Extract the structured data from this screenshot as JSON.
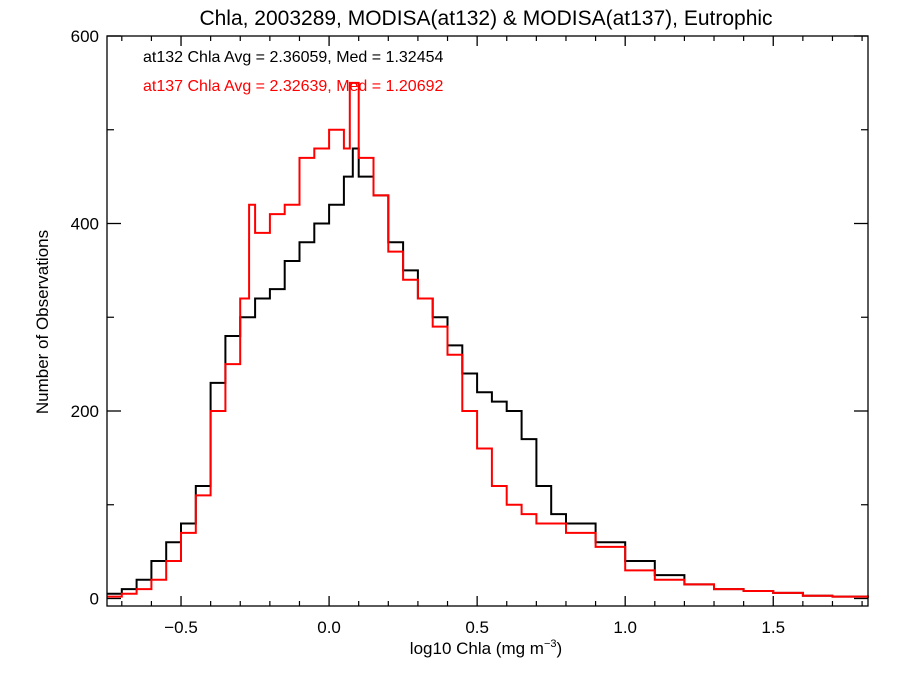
{
  "chart_data": {
    "type": "line",
    "title": "Chla, 2003289, MODISA(at132) & MODISA(at137), Eutrophic",
    "xlabel": "log10 Chla (mg m",
    "xlabel_sup": "−3",
    "xlabel_close": ")",
    "ylabel": "Number of Observations",
    "xlim": [
      -0.75,
      1.82
    ],
    "ylim": [
      -8,
      600
    ],
    "x_ticks": [
      -0.5,
      0.0,
      0.5,
      1.0,
      1.5
    ],
    "x_tick_labels": [
      "−0.5",
      "0.0",
      "0.5",
      "1.0",
      "1.5"
    ],
    "y_ticks": [
      0,
      200,
      400,
      600
    ],
    "y_tick_labels": [
      "0",
      "200",
      "400",
      "600"
    ],
    "grid": false,
    "step": true,
    "annotations": [
      {
        "text": "at132 Chla Avg = 2.36059, Med = 1.32454",
        "color": "#000000"
      },
      {
        "text": "at137 Chla Avg = 2.32639, Med = 1.20692",
        "color": "#ff0000"
      }
    ],
    "series": [
      {
        "color": "#000000",
        "x": [
          -0.75,
          -0.7,
          -0.65,
          -0.6,
          -0.55,
          -0.5,
          -0.45,
          -0.4,
          -0.35,
          -0.3,
          -0.25,
          -0.2,
          -0.15,
          -0.1,
          -0.05,
          0.0,
          0.05,
          0.08,
          0.1,
          0.15,
          0.2,
          0.25,
          0.3,
          0.35,
          0.4,
          0.45,
          0.5,
          0.55,
          0.6,
          0.65,
          0.7,
          0.75,
          0.8,
          0.9,
          1.0,
          1.1,
          1.2,
          1.3,
          1.4,
          1.5,
          1.6,
          1.7,
          1.82
        ],
        "y": [
          5,
          10,
          20,
          40,
          60,
          80,
          120,
          230,
          280,
          300,
          320,
          330,
          360,
          380,
          400,
          420,
          450,
          480,
          450,
          430,
          380,
          350,
          320,
          300,
          270,
          240,
          220,
          210,
          200,
          170,
          120,
          90,
          80,
          60,
          40,
          25,
          15,
          10,
          8,
          6,
          3,
          2,
          1
        ]
      },
      {
        "color": "#ff0000",
        "x": [
          -0.75,
          -0.7,
          -0.65,
          -0.6,
          -0.55,
          -0.5,
          -0.45,
          -0.4,
          -0.35,
          -0.3,
          -0.27,
          -0.25,
          -0.2,
          -0.15,
          -0.1,
          -0.05,
          0.0,
          0.05,
          0.07,
          0.1,
          0.15,
          0.2,
          0.25,
          0.3,
          0.35,
          0.4,
          0.45,
          0.5,
          0.55,
          0.6,
          0.65,
          0.7,
          0.8,
          0.9,
          1.0,
          1.1,
          1.2,
          1.3,
          1.4,
          1.5,
          1.6,
          1.7,
          1.82
        ],
        "y": [
          2,
          5,
          10,
          20,
          40,
          70,
          110,
          200,
          250,
          320,
          420,
          390,
          410,
          420,
          470,
          480,
          500,
          480,
          550,
          470,
          430,
          370,
          340,
          320,
          290,
          260,
          200,
          160,
          120,
          100,
          90,
          80,
          70,
          55,
          30,
          20,
          15,
          10,
          8,
          6,
          3,
          2,
          1
        ]
      }
    ]
  }
}
